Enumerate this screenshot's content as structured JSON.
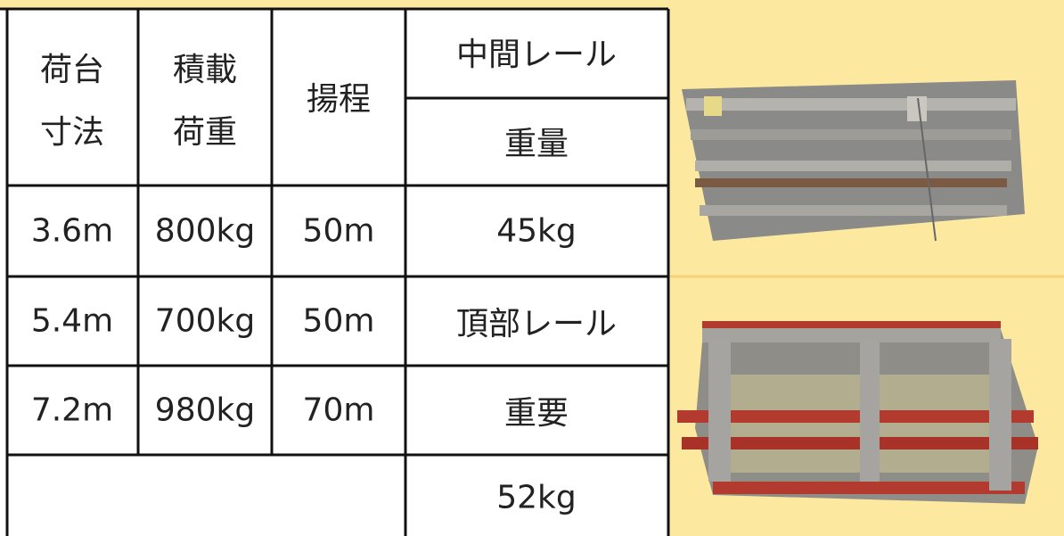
{
  "table": {
    "header": [
      [
        "荷台",
        "寸法"
      ],
      [
        "積載",
        "荷重"
      ],
      [
        "揚程"
      ],
      [
        "中間レール",
        "重量"
      ]
    ],
    "rows": [
      [
        "3.6m",
        "800kg",
        "50m",
        "45kg"
      ],
      [
        "5.4m",
        "700kg",
        "50m",
        "頂部レール"
      ],
      [
        "7.2m",
        "980kg",
        "70m",
        "重要"
      ],
      [
        "52kg"
      ]
    ]
  }
}
